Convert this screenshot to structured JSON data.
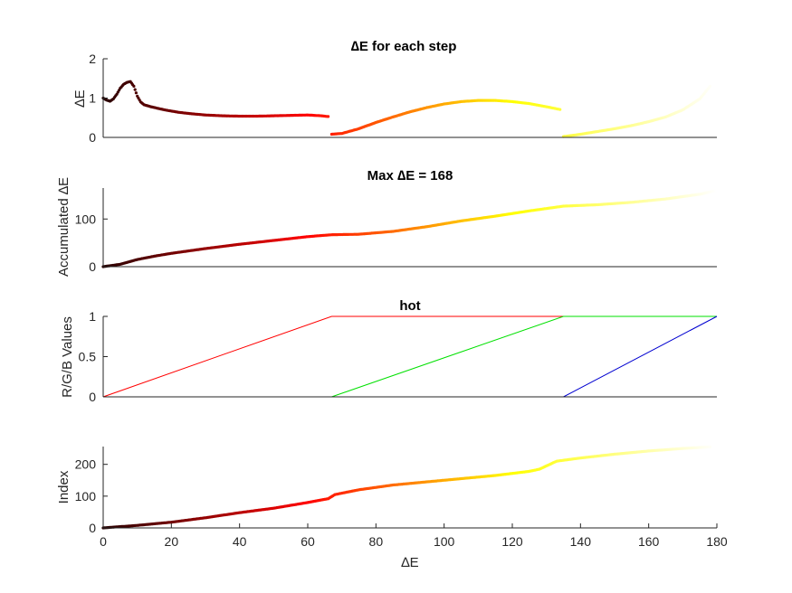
{
  "figure": {
    "xlabel": "∆E",
    "x_ticks": [
      "0",
      "20",
      "40",
      "60",
      "80",
      "100",
      "120",
      "140",
      "160",
      "180"
    ]
  },
  "chart_data": [
    {
      "type": "scatter",
      "title": "∆E for each step",
      "xlabel": "",
      "ylabel": "∆E",
      "xlim": [
        0,
        180
      ],
      "ylim": [
        0,
        2
      ],
      "y_ticks": [
        "0",
        "1",
        "2"
      ],
      "grid": false,
      "colormap": "hot",
      "series": [
        {
          "segment": "red ramp",
          "points": [
            [
              0,
              1.0
            ],
            [
              1,
              0.95
            ],
            [
              2,
              0.92
            ],
            [
              3,
              0.98
            ],
            [
              4,
              1.1
            ],
            [
              5,
              1.25
            ],
            [
              6,
              1.35
            ],
            [
              7,
              1.4
            ],
            [
              8,
              1.42
            ],
            [
              9,
              1.3
            ],
            [
              10,
              1.05
            ],
            [
              11,
              0.9
            ],
            [
              12,
              0.83
            ],
            [
              14,
              0.78
            ],
            [
              18,
              0.7
            ],
            [
              22,
              0.64
            ],
            [
              26,
              0.6
            ],
            [
              30,
              0.57
            ],
            [
              35,
              0.55
            ],
            [
              40,
              0.54
            ],
            [
              45,
              0.54
            ],
            [
              50,
              0.55
            ],
            [
              55,
              0.56
            ],
            [
              60,
              0.57
            ],
            [
              64,
              0.55
            ],
            [
              66,
              0.53
            ]
          ]
        },
        {
          "segment": "green ramp",
          "points": [
            [
              67,
              0.08
            ],
            [
              70,
              0.1
            ],
            [
              75,
              0.22
            ],
            [
              80,
              0.38
            ],
            [
              85,
              0.52
            ],
            [
              90,
              0.65
            ],
            [
              95,
              0.76
            ],
            [
              100,
              0.85
            ],
            [
              105,
              0.91
            ],
            [
              110,
              0.94
            ],
            [
              115,
              0.94
            ],
            [
              120,
              0.91
            ],
            [
              125,
              0.86
            ],
            [
              130,
              0.78
            ],
            [
              134,
              0.71
            ]
          ]
        },
        {
          "segment": "blue ramp",
          "points": [
            [
              135,
              0.02
            ],
            [
              140,
              0.08
            ],
            [
              145,
              0.15
            ],
            [
              150,
              0.22
            ],
            [
              155,
              0.3
            ],
            [
              160,
              0.4
            ],
            [
              165,
              0.52
            ],
            [
              170,
              0.7
            ],
            [
              175,
              0.98
            ],
            [
              178,
              1.3
            ]
          ]
        }
      ]
    },
    {
      "type": "scatter",
      "title": "Max ∆E = 168",
      "xlabel": "",
      "ylabel": "Accumulated ∆E",
      "xlim": [
        0,
        180
      ],
      "ylim": [
        0,
        165
      ],
      "y_ticks": [
        "0",
        "100"
      ],
      "y_tick_values": [
        0,
        100
      ],
      "grid": false,
      "colormap": "hot",
      "points": [
        [
          0,
          0
        ],
        [
          5,
          5
        ],
        [
          10,
          15
        ],
        [
          15,
          22
        ],
        [
          20,
          28
        ],
        [
          30,
          38
        ],
        [
          40,
          47
        ],
        [
          50,
          55
        ],
        [
          60,
          63
        ],
        [
          67,
          67
        ],
        [
          75,
          68
        ],
        [
          85,
          74
        ],
        [
          95,
          84
        ],
        [
          105,
          96
        ],
        [
          115,
          106
        ],
        [
          125,
          117
        ],
        [
          135,
          127
        ],
        [
          145,
          130
        ],
        [
          155,
          135
        ],
        [
          165,
          142
        ],
        [
          175,
          152
        ],
        [
          180,
          160
        ]
      ]
    },
    {
      "type": "line",
      "title": "hot",
      "xlabel": "",
      "ylabel": "R/G/B Values",
      "xlim": [
        0,
        180
      ],
      "ylim": [
        0,
        1
      ],
      "y_ticks": [
        "0",
        "0.5",
        "1"
      ],
      "y_tick_values": [
        0,
        0.5,
        1
      ],
      "grid": false,
      "series": [
        {
          "name": "R",
          "color": "#ff0000",
          "points": [
            [
              0,
              0
            ],
            [
              67,
              1
            ],
            [
              180,
              1
            ]
          ]
        },
        {
          "name": "G",
          "color": "#00e000",
          "points": [
            [
              0,
              0
            ],
            [
              67,
              0
            ],
            [
              135,
              1
            ],
            [
              180,
              1
            ]
          ]
        },
        {
          "name": "B",
          "color": "#0000d0",
          "points": [
            [
              0,
              0
            ],
            [
              135,
              0
            ],
            [
              180,
              1
            ]
          ]
        }
      ]
    },
    {
      "type": "scatter",
      "title": "",
      "xlabel": "∆E",
      "ylabel": "Index",
      "xlim": [
        0,
        180
      ],
      "ylim": [
        0,
        256
      ],
      "y_ticks": [
        "0",
        "100",
        "200"
      ],
      "y_tick_values": [
        0,
        100,
        200
      ],
      "grid": false,
      "colormap": "hot",
      "points": [
        [
          0,
          0
        ],
        [
          10,
          8
        ],
        [
          20,
          18
        ],
        [
          30,
          32
        ],
        [
          40,
          48
        ],
        [
          50,
          62
        ],
        [
          60,
          80
        ],
        [
          66,
          92
        ],
        [
          68,
          105
        ],
        [
          75,
          120
        ],
        [
          85,
          135
        ],
        [
          95,
          145
        ],
        [
          105,
          155
        ],
        [
          115,
          165
        ],
        [
          125,
          178
        ],
        [
          128,
          185
        ],
        [
          130,
          195
        ],
        [
          133,
          210
        ],
        [
          140,
          220
        ],
        [
          150,
          232
        ],
        [
          160,
          242
        ],
        [
          170,
          250
        ],
        [
          178,
          255
        ]
      ]
    }
  ]
}
